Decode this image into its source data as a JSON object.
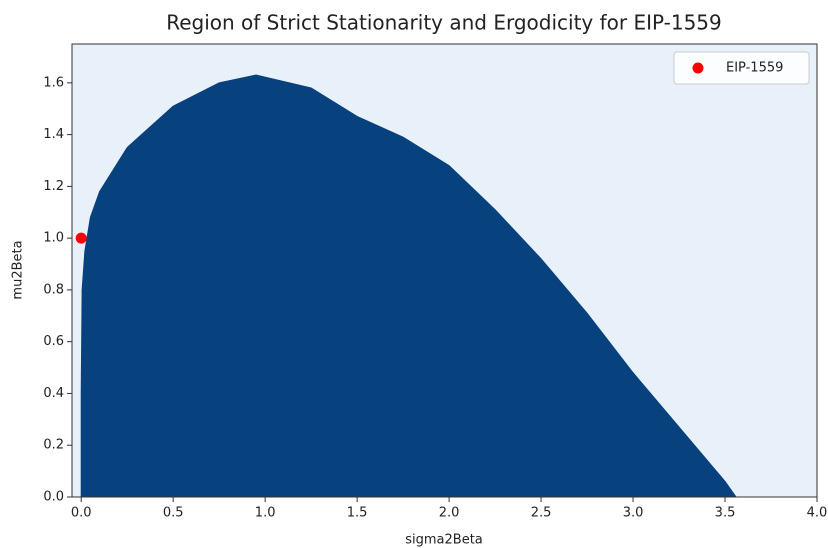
{
  "chart_data": {
    "type": "area",
    "title": "Region of Strict Stationarity and Ergodicity for EIP-1559",
    "x_label": "sigma2Beta",
    "y_label": "mu2Beta",
    "x": [
      0,
      0.005,
      0.02,
      0.05,
      0.1,
      0.25,
      0.5,
      0.75,
      0.95,
      1.25,
      1.5,
      1.75,
      2.0,
      2.25,
      2.5,
      2.75,
      3.0,
      3.25,
      3.5,
      3.56
    ],
    "values": [
      0.4,
      0.8,
      0.95,
      1.08,
      1.18,
      1.35,
      1.51,
      1.6,
      1.63,
      1.58,
      1.47,
      1.39,
      1.28,
      1.11,
      0.92,
      0.71,
      0.48,
      0.27,
      0.06,
      0
    ],
    "color": "#08427e",
    "background": "#e8f0fa",
    "points": [
      {
        "name": "EIP-1559",
        "color": "#ff0000",
        "x": [
          0
        ],
        "values": [
          1
        ]
      }
    ],
    "legend": "upper right",
    "xlim": [
      -0.05,
      4.0
    ],
    "ylim": [
      0,
      1.75
    ],
    "xticks": [
      {
        "value": 0,
        "label": "0.0"
      },
      0.5,
      {
        "value": 1,
        "label": "1.0"
      },
      1.5,
      {
        "value": 2,
        "label": "2.0"
      },
      2.5,
      {
        "value": 3,
        "label": "3.0"
      },
      3.5,
      {
        "value": 4,
        "label": "4.0"
      }
    ],
    "yticks": [
      {
        "value": 0,
        "label": "0.0"
      },
      0.2,
      0.4,
      0.6,
      0.8,
      {
        "value": 1,
        "label": "1.0"
      },
      1.2,
      1.4,
      1.6
    ]
  }
}
